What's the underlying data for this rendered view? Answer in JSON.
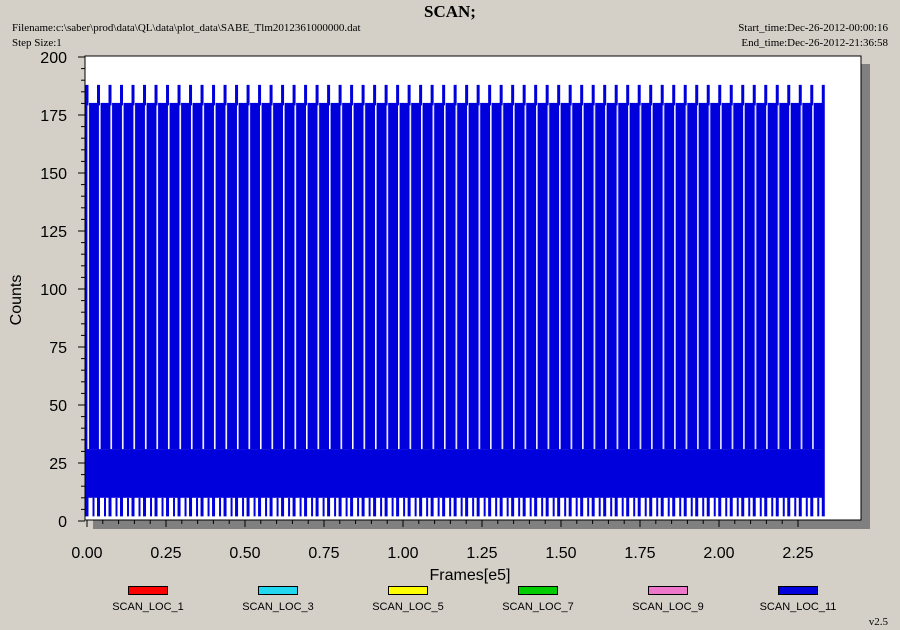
{
  "header": {
    "title": "SCAN;",
    "filename": "Filename:c:\\saber\\prod\\data\\QL\\data\\plot_data\\SABE_Tlm2012361000000.dat",
    "step_size": "Step Size:1",
    "start_time": "Start_time:Dec-26-2012-00:00:16",
    "end_time": "End_time:Dec-26-2012-21:36:58"
  },
  "version": "v2.5",
  "chart_data": {
    "type": "line",
    "title": "SCAN;",
    "xlabel": "Frames[e5]",
    "ylabel": "Counts",
    "xlim": [
      0,
      2.45
    ],
    "ylim": [
      0,
      200
    ],
    "x_ticks": [
      "0.00",
      "0.25",
      "0.50",
      "0.75",
      "1.00",
      "1.25",
      "1.50",
      "1.75",
      "2.00",
      "2.25"
    ],
    "y_ticks": [
      "0",
      "25",
      "50",
      "75",
      "100",
      "125",
      "150",
      "175",
      "200"
    ],
    "grid": false,
    "legend_position": "bottom",
    "x_data_end": 2.33,
    "scan_cycles": 64,
    "scan_peak_high": 188,
    "scan_peak_low": 180,
    "baseline_band": [
      10,
      31
    ],
    "baseline_floor": 2,
    "series": [
      {
        "name": "SCAN_LOC_1",
        "color": "#ff0000"
      },
      {
        "name": "SCAN_LOC_3",
        "color": "#22d8f0"
      },
      {
        "name": "SCAN_LOC_5",
        "color": "#ffff00"
      },
      {
        "name": "SCAN_LOC_7",
        "color": "#00cc00"
      },
      {
        "name": "SCAN_LOC_9",
        "color": "#ee77cc"
      },
      {
        "name": "SCAN_LOC_11",
        "color": "#0000dd"
      }
    ]
  }
}
